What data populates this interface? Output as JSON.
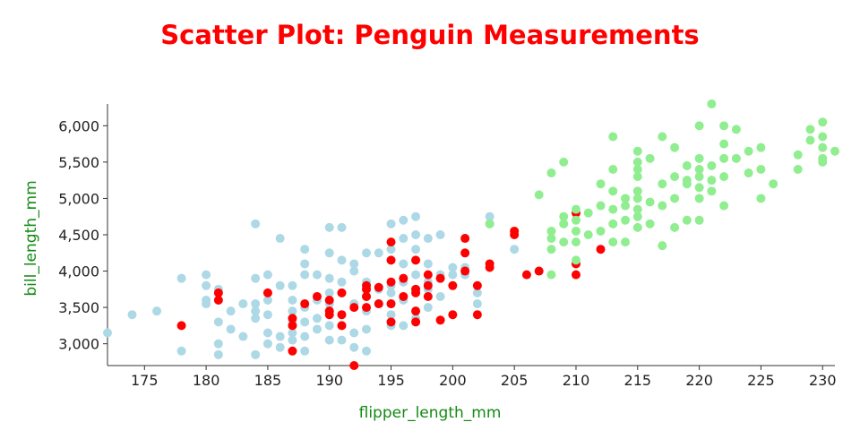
{
  "chart_data": {
    "type": "scatter",
    "title": "Scatter Plot: Penguin Measurements",
    "xlabel": "flipper_length_mm",
    "ylabel": "bill_length_mm",
    "xlim": [
      172,
      231
    ],
    "ylim": [
      2700,
      6300
    ],
    "x_ticks": [
      175,
      180,
      185,
      190,
      195,
      200,
      205,
      210,
      215,
      220,
      225,
      230
    ],
    "y_ticks": [
      3000,
      3500,
      4000,
      4500,
      5000,
      5500,
      6000
    ],
    "y_tick_labels": [
      "3,000",
      "3,500",
      "4,000",
      "4,500",
      "5,000",
      "5,500",
      "6,000"
    ],
    "grid": false,
    "colors": {
      "title": "#ff0000",
      "axis_title": "#148a14"
    },
    "series": [
      {
        "color": "#add8e6",
        "points": [
          [
            172,
            3150
          ],
          [
            174,
            3400
          ],
          [
            176,
            3450
          ],
          [
            178,
            2900
          ],
          [
            178,
            3900
          ],
          [
            180,
            3550
          ],
          [
            180,
            3600
          ],
          [
            180,
            3800
          ],
          [
            180,
            3950
          ],
          [
            181,
            2850
          ],
          [
            181,
            3000
          ],
          [
            181,
            3300
          ],
          [
            181,
            3600
          ],
          [
            181,
            3750
          ],
          [
            182,
            3200
          ],
          [
            182,
            3450
          ],
          [
            183,
            3100
          ],
          [
            183,
            3550
          ],
          [
            184,
            2850
          ],
          [
            184,
            3350
          ],
          [
            184,
            3450
          ],
          [
            184,
            3550
          ],
          [
            184,
            3900
          ],
          [
            184,
            4650
          ],
          [
            185,
            3000
          ],
          [
            185,
            3150
          ],
          [
            185,
            3400
          ],
          [
            185,
            3600
          ],
          [
            185,
            3950
          ],
          [
            186,
            2950
          ],
          [
            186,
            3100
          ],
          [
            186,
            3800
          ],
          [
            186,
            4450
          ],
          [
            187,
            3050
          ],
          [
            187,
            3150
          ],
          [
            187,
            3300
          ],
          [
            187,
            3450
          ],
          [
            187,
            3600
          ],
          [
            187,
            3800
          ],
          [
            188,
            2900
          ],
          [
            188,
            3100
          ],
          [
            188,
            3300
          ],
          [
            188,
            3500
          ],
          [
            188,
            3950
          ],
          [
            188,
            4100
          ],
          [
            188,
            4300
          ],
          [
            189,
            3200
          ],
          [
            189,
            3350
          ],
          [
            189,
            3600
          ],
          [
            189,
            3950
          ],
          [
            190,
            3050
          ],
          [
            190,
            3250
          ],
          [
            190,
            3450
          ],
          [
            190,
            3550
          ],
          [
            190,
            3700
          ],
          [
            190,
            3900
          ],
          [
            190,
            4250
          ],
          [
            190,
            4600
          ],
          [
            191,
            3050
          ],
          [
            191,
            3250
          ],
          [
            191,
            3400
          ],
          [
            191,
            3700
          ],
          [
            191,
            3850
          ],
          [
            191,
            4150
          ],
          [
            191,
            4600
          ],
          [
            192,
            2950
          ],
          [
            192,
            3150
          ],
          [
            192,
            3550
          ],
          [
            192,
            4000
          ],
          [
            192,
            4100
          ],
          [
            193,
            2900
          ],
          [
            193,
            3200
          ],
          [
            193,
            3450
          ],
          [
            193,
            3650
          ],
          [
            193,
            3850
          ],
          [
            193,
            4250
          ],
          [
            194,
            3550
          ],
          [
            194,
            3750
          ],
          [
            194,
            4250
          ],
          [
            195,
            3250
          ],
          [
            195,
            3400
          ],
          [
            195,
            3550
          ],
          [
            195,
            3700
          ],
          [
            195,
            3800
          ],
          [
            195,
            4150
          ],
          [
            195,
            4300
          ],
          [
            195,
            4650
          ],
          [
            196,
            3250
          ],
          [
            196,
            3600
          ],
          [
            196,
            3850
          ],
          [
            196,
            4100
          ],
          [
            196,
            4450
          ],
          [
            196,
            4700
          ],
          [
            197,
            3350
          ],
          [
            197,
            3750
          ],
          [
            197,
            3950
          ],
          [
            197,
            4300
          ],
          [
            197,
            4500
          ],
          [
            197,
            4750
          ],
          [
            198,
            3500
          ],
          [
            198,
            3750
          ],
          [
            198,
            3850
          ],
          [
            198,
            4100
          ],
          [
            198,
            4450
          ],
          [
            199,
            3650
          ],
          [
            199,
            3950
          ],
          [
            199,
            4500
          ],
          [
            200,
            3950
          ],
          [
            200,
            4050
          ],
          [
            201,
            3950
          ],
          [
            201,
            4050
          ],
          [
            202,
            3550
          ],
          [
            202,
            3700
          ],
          [
            203,
            4650
          ],
          [
            203,
            4750
          ],
          [
            205,
            4300
          ]
        ]
      },
      {
        "color": "#ff0000",
        "points": [
          [
            178,
            3250
          ],
          [
            181,
            3600
          ],
          [
            181,
            3700
          ],
          [
            185,
            3700
          ],
          [
            187,
            2900
          ],
          [
            187,
            3250
          ],
          [
            187,
            3350
          ],
          [
            188,
            3550
          ],
          [
            189,
            3650
          ],
          [
            190,
            3400
          ],
          [
            190,
            3450
          ],
          [
            190,
            3600
          ],
          [
            191,
            3250
          ],
          [
            191,
            3400
          ],
          [
            191,
            3700
          ],
          [
            192,
            2700
          ],
          [
            192,
            3500
          ],
          [
            193,
            3500
          ],
          [
            193,
            3650
          ],
          [
            193,
            3750
          ],
          [
            193,
            3800
          ],
          [
            194,
            3550
          ],
          [
            194,
            3775
          ],
          [
            195,
            3300
          ],
          [
            195,
            3550
          ],
          [
            195,
            3850
          ],
          [
            195,
            4150
          ],
          [
            195,
            4400
          ],
          [
            196,
            3650
          ],
          [
            196,
            3900
          ],
          [
            197,
            3300
          ],
          [
            197,
            3450
          ],
          [
            197,
            3700
          ],
          [
            197,
            3750
          ],
          [
            197,
            4150
          ],
          [
            198,
            3650
          ],
          [
            198,
            3800
          ],
          [
            198,
            3950
          ],
          [
            199,
            3325
          ],
          [
            199,
            3900
          ],
          [
            200,
            3400
          ],
          [
            200,
            3800
          ],
          [
            201,
            4000
          ],
          [
            201,
            4250
          ],
          [
            201,
            4450
          ],
          [
            202,
            3400
          ],
          [
            202,
            3800
          ],
          [
            203,
            4050
          ],
          [
            203,
            4100
          ],
          [
            205,
            4500
          ],
          [
            205,
            4550
          ],
          [
            206,
            3950
          ],
          [
            207,
            4000
          ],
          [
            210,
            3950
          ],
          [
            210,
            4100
          ],
          [
            210,
            4800
          ],
          [
            212,
            4300
          ]
        ]
      },
      {
        "color": "#90ee90",
        "points": [
          [
            203,
            4650
          ],
          [
            207,
            5050
          ],
          [
            208,
            3950
          ],
          [
            208,
            4300
          ],
          [
            208,
            4450
          ],
          [
            208,
            4550
          ],
          [
            208,
            5350
          ],
          [
            209,
            4400
          ],
          [
            209,
            4650
          ],
          [
            209,
            4750
          ],
          [
            209,
            5500
          ],
          [
            210,
            4150
          ],
          [
            210,
            4400
          ],
          [
            210,
            4550
          ],
          [
            210,
            4700
          ],
          [
            210,
            4850
          ],
          [
            211,
            4500
          ],
          [
            211,
            4800
          ],
          [
            212,
            4550
          ],
          [
            212,
            4900
          ],
          [
            212,
            5200
          ],
          [
            213,
            4400
          ],
          [
            213,
            4650
          ],
          [
            213,
            4850
          ],
          [
            213,
            5100
          ],
          [
            213,
            5400
          ],
          [
            213,
            5850
          ],
          [
            214,
            4400
          ],
          [
            214,
            4700
          ],
          [
            214,
            4900
          ],
          [
            214,
            5000
          ],
          [
            215,
            4600
          ],
          [
            215,
            4750
          ],
          [
            215,
            4850
          ],
          [
            215,
            5000
          ],
          [
            215,
            5100
          ],
          [
            215,
            5300
          ],
          [
            215,
            5400
          ],
          [
            215,
            5500
          ],
          [
            215,
            5650
          ],
          [
            216,
            4650
          ],
          [
            216,
            4950
          ],
          [
            216,
            5550
          ],
          [
            217,
            4350
          ],
          [
            217,
            4900
          ],
          [
            217,
            5200
          ],
          [
            217,
            5850
          ],
          [
            218,
            4600
          ],
          [
            218,
            5000
          ],
          [
            218,
            5300
          ],
          [
            218,
            5700
          ],
          [
            219,
            4700
          ],
          [
            219,
            5200
          ],
          [
            219,
            5250
          ],
          [
            219,
            5450
          ],
          [
            220,
            4700
          ],
          [
            220,
            5000
          ],
          [
            220,
            5150
          ],
          [
            220,
            5300
          ],
          [
            220,
            5400
          ],
          [
            220,
            5550
          ],
          [
            220,
            6000
          ],
          [
            221,
            5100
          ],
          [
            221,
            5250
          ],
          [
            221,
            5450
          ],
          [
            221,
            6300
          ],
          [
            222,
            4900
          ],
          [
            222,
            5300
          ],
          [
            222,
            5550
          ],
          [
            222,
            5750
          ],
          [
            222,
            6000
          ],
          [
            223,
            5550
          ],
          [
            223,
            5950
          ],
          [
            224,
            5350
          ],
          [
            224,
            5650
          ],
          [
            225,
            5000
          ],
          [
            225,
            5400
          ],
          [
            225,
            5700
          ],
          [
            226,
            5200
          ],
          [
            228,
            5400
          ],
          [
            228,
            5600
          ],
          [
            229,
            5800
          ],
          [
            229,
            5950
          ],
          [
            230,
            5500
          ],
          [
            230,
            5550
          ],
          [
            230,
            5700
          ],
          [
            230,
            5850
          ],
          [
            230,
            6050
          ],
          [
            231,
            5650
          ]
        ]
      }
    ]
  }
}
